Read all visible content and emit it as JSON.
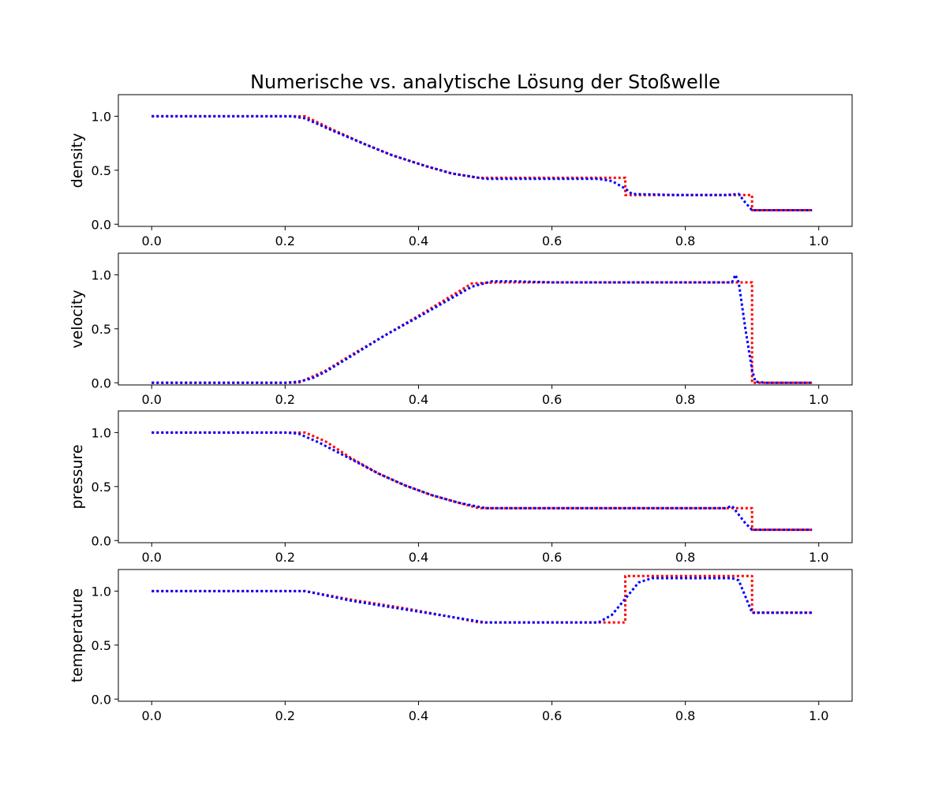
{
  "chart_data": {
    "type": "line",
    "title": "Numerische vs. analytische Lösung der Stoßwelle",
    "x_ticks": [
      "0.0",
      "0.2",
      "0.4",
      "0.6",
      "0.8",
      "1.0"
    ],
    "x_tick_values": [
      0.0,
      0.2,
      0.4,
      0.6,
      0.8,
      1.0
    ],
    "xlim": [
      -0.05,
      1.05
    ],
    "y_ticks": [
      "0.0",
      "0.5",
      "1.0"
    ],
    "y_tick_values": [
      0.0,
      0.5,
      1.0
    ],
    "series_colors": {
      "analytic": "#ff0000",
      "numeric": "#0000ff"
    },
    "panels": [
      {
        "ylabel": "density",
        "ylim": [
          -0.02,
          1.2
        ],
        "series": [
          {
            "style": "analytic",
            "x": [
              0.0,
              0.23,
              0.27,
              0.32,
              0.36,
              0.41,
              0.45,
              0.49,
              0.56,
              0.64,
              0.7,
              0.71,
              0.71,
              0.79,
              0.9,
              0.9,
              0.99
            ],
            "y": [
              1.0,
              1.0,
              0.88,
              0.74,
              0.64,
              0.54,
              0.47,
              0.43,
              0.43,
              0.43,
              0.43,
              0.43,
              0.27,
              0.27,
              0.27,
              0.13,
              0.13
            ]
          },
          {
            "style": "numeric",
            "x": [
              0.0,
              0.21,
              0.23,
              0.27,
              0.32,
              0.36,
              0.41,
              0.45,
              0.5,
              0.56,
              0.64,
              0.67,
              0.69,
              0.71,
              0.72,
              0.79,
              0.86,
              0.88,
              0.89,
              0.9,
              0.99
            ],
            "y": [
              1.0,
              1.0,
              0.98,
              0.87,
              0.74,
              0.64,
              0.54,
              0.47,
              0.42,
              0.42,
              0.42,
              0.42,
              0.4,
              0.33,
              0.28,
              0.27,
              0.27,
              0.28,
              0.2,
              0.13,
              0.13
            ]
          }
        ]
      },
      {
        "ylabel": "velocity",
        "ylim": [
          -0.02,
          1.2
        ],
        "series": [
          {
            "style": "analytic",
            "x": [
              0.0,
              0.22,
              0.26,
              0.3,
              0.35,
              0.4,
              0.44,
              0.48,
              0.52,
              0.6,
              0.7,
              0.8,
              0.9,
              0.9,
              0.99
            ],
            "y": [
              0.0,
              0.0,
              0.11,
              0.26,
              0.44,
              0.62,
              0.77,
              0.92,
              0.93,
              0.93,
              0.93,
              0.93,
              0.93,
              0.0,
              0.0
            ]
          },
          {
            "style": "numeric",
            "x": [
              0.0,
              0.2,
              0.22,
              0.24,
              0.26,
              0.3,
              0.35,
              0.4,
              0.44,
              0.48,
              0.51,
              0.54,
              0.6,
              0.7,
              0.8,
              0.87,
              0.875,
              0.88,
              0.89,
              0.9,
              0.905,
              0.92,
              0.99
            ],
            "y": [
              0.0,
              0.0,
              0.01,
              0.04,
              0.1,
              0.25,
              0.44,
              0.61,
              0.75,
              0.89,
              0.94,
              0.94,
              0.93,
              0.93,
              0.93,
              0.93,
              1.0,
              0.93,
              0.5,
              0.12,
              0.01,
              0.0,
              0.0
            ]
          }
        ]
      },
      {
        "ylabel": "pressure",
        "ylim": [
          -0.02,
          1.2
        ],
        "series": [
          {
            "style": "analytic",
            "x": [
              0.0,
              0.23,
              0.26,
              0.3,
              0.34,
              0.38,
              0.42,
              0.46,
              0.49,
              0.6,
              0.7,
              0.8,
              0.9,
              0.9,
              0.99
            ],
            "y": [
              1.0,
              1.0,
              0.92,
              0.76,
              0.62,
              0.51,
              0.42,
              0.35,
              0.3,
              0.3,
              0.3,
              0.3,
              0.3,
              0.1,
              0.1
            ]
          },
          {
            "style": "numeric",
            "x": [
              0.0,
              0.2,
              0.22,
              0.25,
              0.3,
              0.34,
              0.38,
              0.42,
              0.46,
              0.5,
              0.55,
              0.6,
              0.7,
              0.8,
              0.86,
              0.87,
              0.89,
              0.9,
              0.99
            ],
            "y": [
              1.0,
              1.0,
              0.99,
              0.91,
              0.75,
              0.62,
              0.51,
              0.42,
              0.35,
              0.3,
              0.3,
              0.3,
              0.3,
              0.3,
              0.3,
              0.32,
              0.16,
              0.1,
              0.1
            ]
          }
        ]
      },
      {
        "ylabel": "temperature",
        "ylim": [
          -0.02,
          1.2
        ],
        "series": [
          {
            "style": "analytic",
            "x": [
              0.0,
              0.23,
              0.3,
              0.38,
              0.45,
              0.49,
              0.6,
              0.7,
              0.71,
              0.71,
              0.8,
              0.9,
              0.9,
              0.99
            ],
            "y": [
              1.0,
              1.0,
              0.92,
              0.84,
              0.76,
              0.71,
              0.71,
              0.71,
              0.71,
              1.14,
              1.14,
              1.14,
              0.8,
              0.8
            ]
          },
          {
            "style": "numeric",
            "x": [
              0.0,
              0.2,
              0.23,
              0.3,
              0.38,
              0.45,
              0.5,
              0.6,
              0.67,
              0.69,
              0.71,
              0.73,
              0.75,
              0.8,
              0.87,
              0.88,
              0.89,
              0.9,
              0.99
            ],
            "y": [
              1.0,
              1.0,
              1.0,
              0.91,
              0.83,
              0.76,
              0.71,
              0.71,
              0.71,
              0.78,
              0.93,
              1.08,
              1.12,
              1.12,
              1.12,
              1.1,
              0.95,
              0.8,
              0.8
            ]
          }
        ]
      }
    ]
  }
}
